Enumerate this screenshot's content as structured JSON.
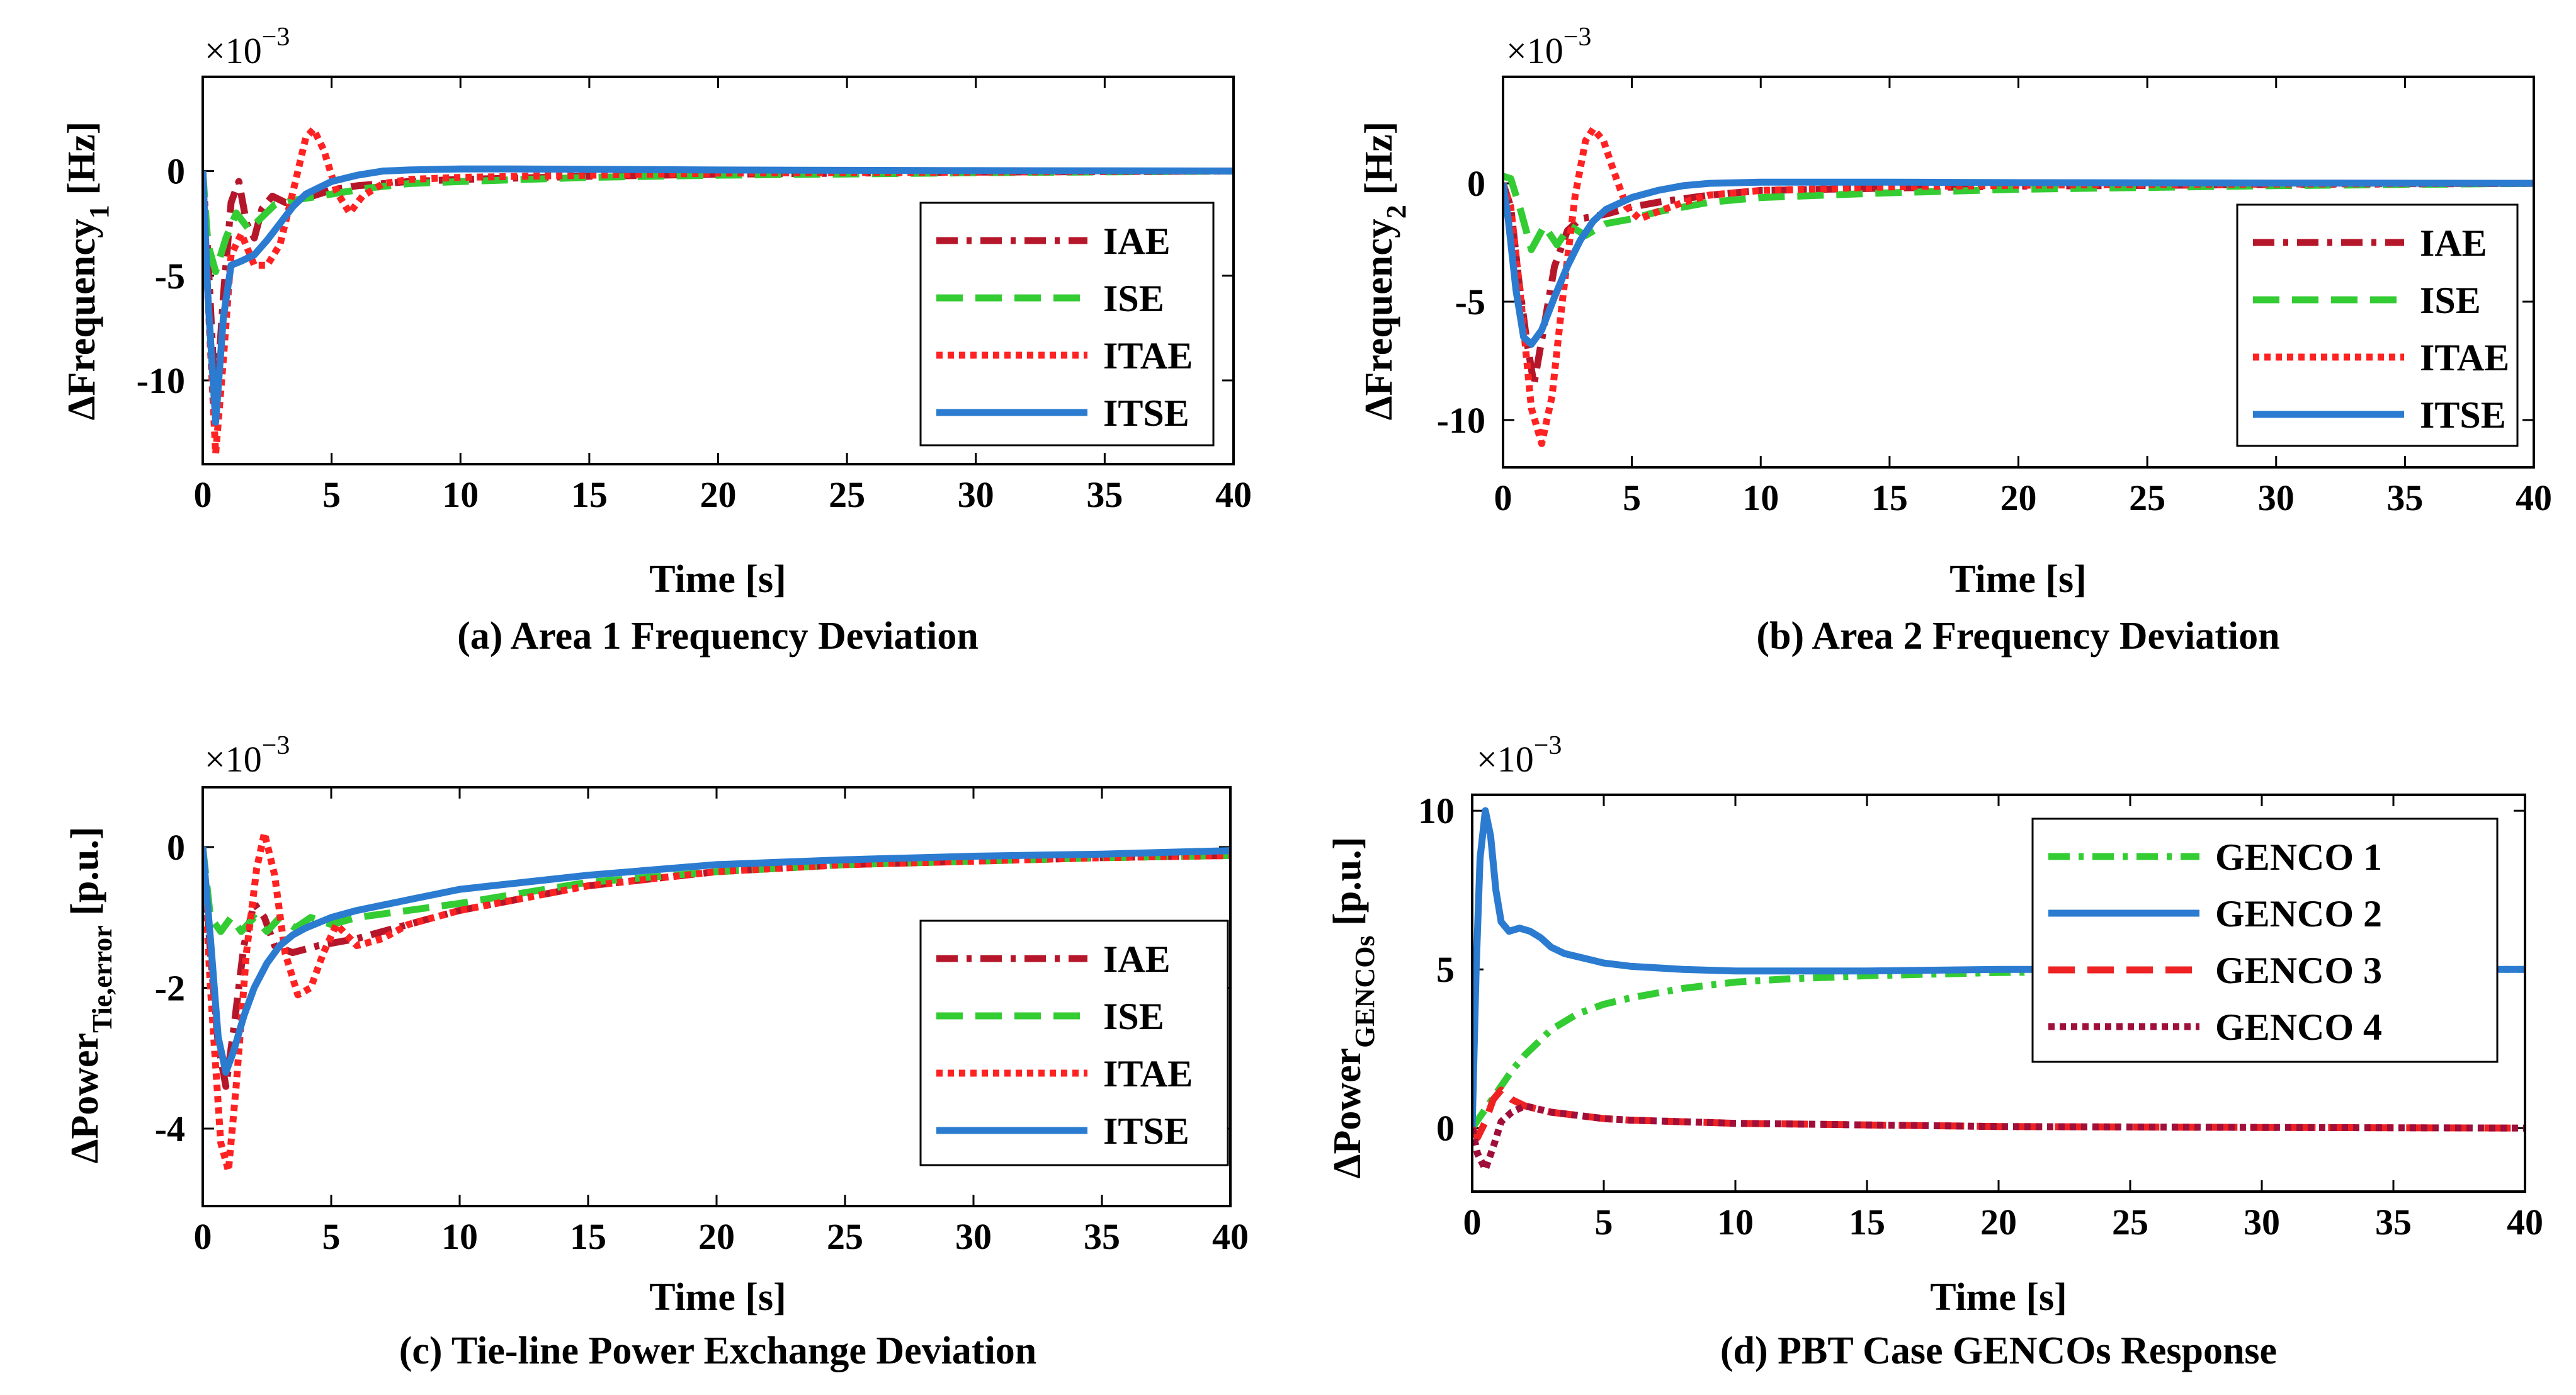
{
  "chart_data": [
    {
      "id": "a",
      "type": "line",
      "caption": "(a) Area 1 Frequency Deviation",
      "xlabel": "Time [s]",
      "ylabel_main": "ΔFrequency",
      "ylabel_sub": "1",
      "ylabel_unit": "[Hz]",
      "multiplier": "×10",
      "multiplier_exp": "−3",
      "xlim": [
        0,
        40
      ],
      "ylim": [
        -14,
        4.5
      ],
      "xticks": [
        0,
        5,
        10,
        15,
        20,
        25,
        30,
        35,
        40
      ],
      "yticks": [
        0,
        -5,
        -10
      ],
      "ytick_labels": [
        "0",
        "-5",
        "-10"
      ],
      "legend_position": "right",
      "series": [
        {
          "name": "IAE",
          "color": "#b5162a",
          "dash": "dashdot",
          "x": [
            0,
            0.2,
            0.5,
            0.8,
            1.1,
            1.4,
            1.7,
            2.0,
            2.3,
            2.7,
            3.2,
            4,
            5,
            6,
            8,
            10,
            15,
            20,
            30,
            40
          ],
          "y": [
            0,
            -4,
            -11.5,
            -6,
            -1.5,
            -0.5,
            -2.5,
            -3.2,
            -1.8,
            -1.2,
            -1.5,
            -1.3,
            -0.9,
            -0.7,
            -0.5,
            -0.4,
            -0.25,
            -0.15,
            -0.05,
            0
          ]
        },
        {
          "name": "ISE",
          "color": "#33cc33",
          "dash": "dashed",
          "x": [
            0,
            0.2,
            0.5,
            0.9,
            1.3,
            1.8,
            2.3,
            2.8,
            3.5,
            4.5,
            5.5,
            6.5,
            8,
            10,
            15,
            20,
            30,
            40
          ],
          "y": [
            0,
            -3.5,
            -4.8,
            -3.2,
            -2.0,
            -2.8,
            -2.2,
            -1.6,
            -1.4,
            -1.2,
            -1.0,
            -0.8,
            -0.6,
            -0.5,
            -0.3,
            -0.2,
            -0.08,
            0
          ]
        },
        {
          "name": "ITAE",
          "color": "#ff2222",
          "dash": "dotted",
          "x": [
            0,
            0.2,
            0.5,
            0.8,
            1.1,
            1.5,
            2.0,
            2.5,
            3.0,
            3.5,
            4.0,
            4.3,
            4.7,
            5.2,
            5.7,
            6.2,
            7,
            8,
            10,
            15,
            20,
            30,
            40
          ],
          "y": [
            0,
            -6,
            -13.5,
            -9,
            -4,
            -3,
            -4.5,
            -4.5,
            -3.5,
            -1.0,
            1.6,
            2.0,
            1.0,
            -1.0,
            -2.0,
            -1.2,
            -0.6,
            -0.4,
            -0.3,
            -0.2,
            -0.1,
            -0.05,
            0
          ]
        },
        {
          "name": "ITSE",
          "color": "#2b7bd0",
          "dash": "solid",
          "x": [
            0,
            0.2,
            0.5,
            0.8,
            1.1,
            1.5,
            2.0,
            2.5,
            3.0,
            3.5,
            4.0,
            5,
            6,
            7,
            8,
            10,
            12,
            15,
            20,
            30,
            40
          ],
          "y": [
            0,
            -6,
            -12,
            -7,
            -4.5,
            -4.3,
            -4,
            -3.3,
            -2.5,
            -1.7,
            -1.1,
            -0.5,
            -0.2,
            0,
            0.05,
            0.1,
            0.1,
            0.08,
            0.05,
            0.02,
            0
          ]
        }
      ]
    },
    {
      "id": "b",
      "type": "line",
      "caption": "(b) Area 2 Frequency Deviation",
      "xlabel": "Time [s]",
      "ylabel_main": "ΔFrequency",
      "ylabel_sub": "2",
      "ylabel_unit": "[Hz]",
      "multiplier": "×10",
      "multiplier_exp": "−3",
      "xlim": [
        0,
        40
      ],
      "ylim": [
        -12,
        4.5
      ],
      "xticks": [
        0,
        5,
        10,
        15,
        20,
        25,
        30,
        35,
        40
      ],
      "yticks": [
        0,
        -5,
        -10
      ],
      "ytick_labels": [
        "0",
        "-5",
        "-10"
      ],
      "legend_position": "right",
      "series": [
        {
          "name": "IAE",
          "color": "#b5162a",
          "dash": "dashdot",
          "x": [
            0,
            0.3,
            0.6,
            0.9,
            1.2,
            1.6,
            2.0,
            2.5,
            3.0,
            4,
            5,
            6,
            8,
            10,
            15,
            20,
            30,
            40
          ],
          "y": [
            0,
            -1,
            -4,
            -6.5,
            -8.5,
            -6,
            -3.5,
            -2,
            -1.5,
            -1.3,
            -1.0,
            -0.8,
            -0.5,
            -0.3,
            -0.2,
            -0.12,
            -0.05,
            0
          ]
        },
        {
          "name": "ISE",
          "color": "#33cc33",
          "dash": "dashed",
          "x": [
            0,
            0.3,
            0.7,
            1.1,
            1.6,
            2.1,
            2.6,
            3.2,
            4,
            5,
            6,
            7,
            8,
            10,
            15,
            20,
            30,
            40
          ],
          "y": [
            0.3,
            0.2,
            -1.2,
            -2.8,
            -1.8,
            -2.6,
            -1.8,
            -2.2,
            -1.7,
            -1.5,
            -1.2,
            -1.0,
            -0.8,
            -0.6,
            -0.4,
            -0.25,
            -0.1,
            0
          ]
        },
        {
          "name": "ITAE",
          "color": "#ff2222",
          "dash": "dotted",
          "x": [
            0,
            0.3,
            0.7,
            1.1,
            1.5,
            1.9,
            2.3,
            2.8,
            3.2,
            3.5,
            3.9,
            4.3,
            4.8,
            5.3,
            6,
            7,
            8,
            10,
            15,
            20,
            30,
            40
          ],
          "y": [
            0,
            -1,
            -5,
            -9.5,
            -11,
            -9,
            -5,
            -0.5,
            1.8,
            2.3,
            1.8,
            0.5,
            -1.0,
            -1.5,
            -1.2,
            -0.8,
            -0.5,
            -0.3,
            -0.15,
            -0.08,
            -0.03,
            0
          ]
        },
        {
          "name": "ITSE",
          "color": "#2b7bd0",
          "dash": "solid",
          "x": [
            0,
            0.2,
            0.5,
            0.8,
            1.1,
            1.5,
            2.0,
            2.5,
            3.0,
            3.5,
            4.0,
            5,
            6,
            7,
            8,
            10,
            15,
            20,
            30,
            40
          ],
          "y": [
            0,
            -1.5,
            -4.5,
            -6.5,
            -6.8,
            -6.2,
            -4.8,
            -3.5,
            -2.4,
            -1.6,
            -1.1,
            -0.6,
            -0.3,
            -0.1,
            0,
            0.05,
            0.05,
            0.03,
            0.01,
            0
          ]
        }
      ]
    },
    {
      "id": "c",
      "type": "line",
      "caption": "(c) Tie-line Power Exchange Deviation",
      "xlabel": "Time [s]",
      "ylabel_main": "ΔPower",
      "ylabel_sub": "Tie,error",
      "ylabel_unit": "[p.u.]",
      "multiplier": "×10",
      "multiplier_exp": "−3",
      "xlim": [
        0,
        40
      ],
      "ylim": [
        -5.1,
        0.85
      ],
      "xticks": [
        0,
        5,
        10,
        15,
        20,
        25,
        30,
        35,
        40
      ],
      "yticks": [
        0,
        -2,
        -4
      ],
      "ytick_labels": [
        "0",
        "-2",
        "-4"
      ],
      "legend_position": "right",
      "series": [
        {
          "name": "IAE",
          "color": "#b5162a",
          "dash": "dashdot",
          "x": [
            0,
            0.3,
            0.6,
            0.9,
            1.2,
            1.6,
            2.0,
            2.4,
            2.8,
            3.5,
            4.5,
            6,
            8,
            10,
            15,
            20,
            25,
            30,
            35,
            40
          ],
          "y": [
            0,
            -1.5,
            -2.8,
            -3.4,
            -2.6,
            -1.4,
            -0.8,
            -1.0,
            -1.4,
            -1.5,
            -1.4,
            -1.3,
            -1.1,
            -0.9,
            -0.55,
            -0.35,
            -0.25,
            -0.2,
            -0.15,
            -0.12
          ]
        },
        {
          "name": "ISE",
          "color": "#33cc33",
          "dash": "dashed",
          "x": [
            0,
            0.3,
            0.7,
            1.1,
            1.5,
            2.0,
            2.5,
            3.0,
            3.6,
            4.2,
            5,
            6,
            8,
            10,
            15,
            20,
            25,
            30,
            35,
            40
          ],
          "y": [
            0,
            -1.0,
            -1.2,
            -1.0,
            -1.2,
            -1.0,
            -1.2,
            -1.0,
            -1.15,
            -1.0,
            -1.1,
            -1.0,
            -0.9,
            -0.8,
            -0.5,
            -0.35,
            -0.25,
            -0.2,
            -0.15,
            -0.12
          ]
        },
        {
          "name": "ITAE",
          "color": "#ff2222",
          "dash": "dotted",
          "x": [
            0,
            0.3,
            0.7,
            1.0,
            1.3,
            1.7,
            2.1,
            2.4,
            2.8,
            3.2,
            3.7,
            4.2,
            4.7,
            5.2,
            6,
            7,
            8,
            10,
            15,
            20,
            25,
            30,
            35,
            40
          ],
          "y": [
            0,
            -2.0,
            -4.2,
            -4.6,
            -3.4,
            -1.5,
            -0.3,
            0.2,
            -0.4,
            -1.5,
            -2.1,
            -2.0,
            -1.5,
            -1.1,
            -1.4,
            -1.3,
            -1.1,
            -0.9,
            -0.55,
            -0.35,
            -0.25,
            -0.2,
            -0.15,
            -0.12
          ]
        },
        {
          "name": "ITSE",
          "color": "#2b7bd0",
          "dash": "solid",
          "x": [
            0,
            0.3,
            0.6,
            0.9,
            1.2,
            1.6,
            2.0,
            2.5,
            3.0,
            3.5,
            4.0,
            5,
            6,
            8,
            10,
            15,
            20,
            25,
            30,
            35,
            40
          ],
          "y": [
            0,
            -1.3,
            -2.7,
            -3.2,
            -2.9,
            -2.4,
            -2.0,
            -1.65,
            -1.4,
            -1.25,
            -1.15,
            -1.0,
            -0.9,
            -0.75,
            -0.6,
            -0.4,
            -0.25,
            -0.18,
            -0.13,
            -0.1,
            -0.05
          ]
        }
      ]
    },
    {
      "id": "d",
      "type": "line",
      "caption": "(d) PBT Case GENCOs Response",
      "xlabel": "Time [s]",
      "ylabel_main": "ΔPower",
      "ylabel_sub": "GENCOs",
      "ylabel_unit": "[p.u.]",
      "multiplier": "×10",
      "multiplier_exp": "−3",
      "xlim": [
        0,
        40
      ],
      "ylim": [
        -2,
        10.5
      ],
      "xticks": [
        0,
        5,
        10,
        15,
        20,
        25,
        30,
        35,
        40
      ],
      "yticks": [
        10,
        5,
        0
      ],
      "ytick_labels": [
        "10",
        "5",
        "0"
      ],
      "legend_position": "top-right",
      "series": [
        {
          "name": "GENCO 1",
          "color": "#33cc33",
          "dash": "dashdot",
          "x": [
            0,
            0.5,
            1,
            1.5,
            2,
            3,
            4,
            5,
            6,
            8,
            10,
            12,
            15,
            20,
            25,
            30,
            35,
            40
          ],
          "y": [
            0,
            0.6,
            1.2,
            1.8,
            2.3,
            3.1,
            3.6,
            3.9,
            4.1,
            4.4,
            4.6,
            4.7,
            4.8,
            4.9,
            4.95,
            5.0,
            5.0,
            5.0
          ]
        },
        {
          "name": "GENCO 2",
          "color": "#2b7bd0",
          "dash": "solid",
          "x": [
            0,
            0.15,
            0.3,
            0.5,
            0.7,
            0.9,
            1.1,
            1.4,
            1.8,
            2.2,
            2.6,
            3.0,
            3.5,
            4,
            5,
            6,
            8,
            10,
            15,
            20,
            25,
            30,
            35,
            40
          ],
          "y": [
            0,
            5,
            8.5,
            10,
            9.2,
            7.5,
            6.5,
            6.2,
            6.3,
            6.2,
            6.0,
            5.7,
            5.5,
            5.4,
            5.2,
            5.1,
            5.0,
            4.95,
            4.95,
            5.0,
            5.0,
            5.0,
            5.0,
            5.0
          ]
        },
        {
          "name": "GENCO 3",
          "color": "#ee2222",
          "dash": "dashed",
          "x": [
            0,
            0.2,
            0.5,
            0.8,
            1.1,
            1.5,
            2,
            2.5,
            3,
            4,
            5,
            6,
            8,
            10,
            15,
            20,
            30,
            40
          ],
          "y": [
            0,
            -0.3,
            0.2,
            0.9,
            1.2,
            0.9,
            0.7,
            0.6,
            0.5,
            0.4,
            0.3,
            0.25,
            0.2,
            0.15,
            0.1,
            0.05,
            0.02,
            0
          ]
        },
        {
          "name": "GENCO 4",
          "color": "#a00e3a",
          "dash": "dotted",
          "x": [
            0,
            0.2,
            0.5,
            0.8,
            1.1,
            1.5,
            2,
            2.5,
            3,
            4,
            5,
            6,
            8,
            10,
            15,
            20,
            30,
            40
          ],
          "y": [
            0,
            -0.8,
            -1.3,
            -0.6,
            0.2,
            0.5,
            0.7,
            0.6,
            0.5,
            0.4,
            0.3,
            0.25,
            0.2,
            0.15,
            0.1,
            0.05,
            0.02,
            0
          ]
        }
      ]
    }
  ]
}
